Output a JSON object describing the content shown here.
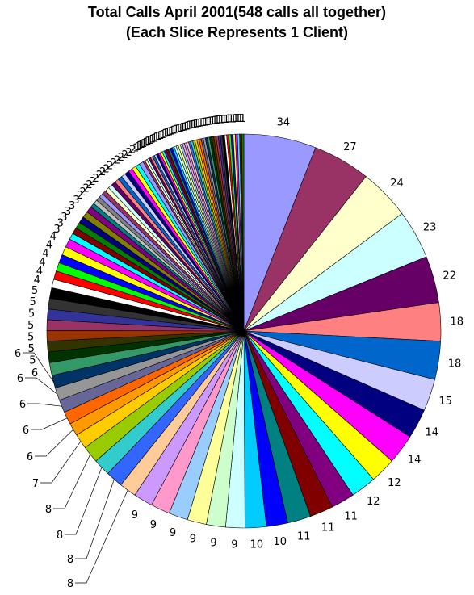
{
  "chart_data": {
    "type": "pie",
    "title": "Total Calls  April 2001(548 calls all together)",
    "subtitle": "(Each Slice Represents 1 Client)",
    "values": [
      34,
      27,
      24,
      23,
      22,
      18,
      18,
      15,
      14,
      14,
      12,
      12,
      11,
      11,
      11,
      10,
      10,
      9,
      9,
      9,
      9,
      9,
      9,
      8,
      8,
      8,
      8,
      7,
      6,
      6,
      6,
      6,
      6,
      6,
      5,
      5,
      5,
      5,
      5,
      5,
      5,
      4,
      4,
      4,
      4,
      4,
      4,
      3,
      3,
      3,
      3,
      3,
      3,
      2,
      2,
      2,
      2,
      2,
      2,
      2,
      2,
      2,
      2,
      2,
      2,
      2,
      2,
      2,
      2,
      1,
      1,
      1,
      1,
      1,
      1,
      1,
      1,
      1,
      1,
      1,
      1,
      1,
      1,
      1,
      1,
      1,
      1,
      1,
      1,
      1,
      1,
      1,
      1,
      1,
      1,
      1,
      1,
      1,
      1,
      1,
      1,
      1,
      1,
      1,
      1,
      1,
      1,
      1,
      1,
      1,
      1,
      1,
      1,
      1,
      1,
      1,
      1,
      1
    ],
    "labels": [
      "34",
      "27",
      "24",
      "23",
      "22",
      "18",
      "18",
      "15",
      "14",
      "14",
      "12",
      "12",
      "11",
      "11",
      "11",
      "10",
      "10",
      "9",
      "9",
      "9",
      "9",
      "9",
      "9",
      "8",
      "8",
      "8",
      "8",
      "7",
      "6",
      "6",
      "6",
      "6",
      "6",
      "6",
      "5",
      "5",
      "5",
      "5",
      "5",
      "5",
      "5",
      "4",
      "4",
      "4",
      "4",
      "4",
      "4",
      "3",
      "3",
      "3",
      "3",
      "3",
      "3",
      "2",
      "2",
      "2",
      "2",
      "2",
      "2",
      "2",
      "2",
      "2",
      "2",
      "2",
      "2",
      "2",
      "2",
      "2",
      "2",
      "1",
      "1",
      "1",
      "1",
      "1",
      "1",
      "1",
      "1",
      "1",
      "1",
      "1",
      "1",
      "1",
      "1",
      "1",
      "1",
      "1",
      "1",
      "1",
      "1",
      "1",
      "1",
      "1",
      "1",
      "1",
      "1",
      "1",
      "1",
      "1",
      "1",
      "1",
      "1",
      "1",
      "1",
      "1",
      "1",
      "1",
      "1",
      "1",
      "1",
      "1",
      "1",
      "1",
      "1",
      "1",
      "1",
      "1",
      "1",
      "1"
    ],
    "colors": [
      "#9999ff",
      "#993366",
      "#ffffcc",
      "#ccffff",
      "#660066",
      "#ff8080",
      "#0066cc",
      "#ccccff",
      "#000080",
      "#ff00ff",
      "#ffff00",
      "#00ffff",
      "#800080",
      "#800000",
      "#008080",
      "#0000ff",
      "#00ccff",
      "#ccffff",
      "#ccffcc",
      "#ffff99",
      "#99ccff",
      "#ff99cc",
      "#cc99ff",
      "#ffcc99",
      "#3366ff",
      "#33cccc",
      "#99cc00",
      "#ffcc00",
      "#ff9900",
      "#ff6600",
      "#666699",
      "#969696",
      "#003366",
      "#339966",
      "#003300",
      "#333300",
      "#993300",
      "#993366",
      "#333399",
      "#333333",
      "#000000",
      "#ffffff",
      "#ff0000",
      "#00ff00",
      "#0000ff",
      "#ffff00",
      "#ff00ff",
      "#00ffff",
      "#800000",
      "#008000",
      "#000080",
      "#808000",
      "#800080",
      "#008080",
      "#c0c0c0",
      "#808080",
      "#9999ff",
      "#993366",
      "#ffffcc",
      "#ccffff",
      "#660066",
      "#ff8080",
      "#0066cc",
      "#ccccff",
      "#000080",
      "#ff00ff",
      "#ffff00",
      "#00ffff"
    ],
    "start_angle_deg": 0,
    "direction": "clockwise",
    "legend": "none"
  }
}
